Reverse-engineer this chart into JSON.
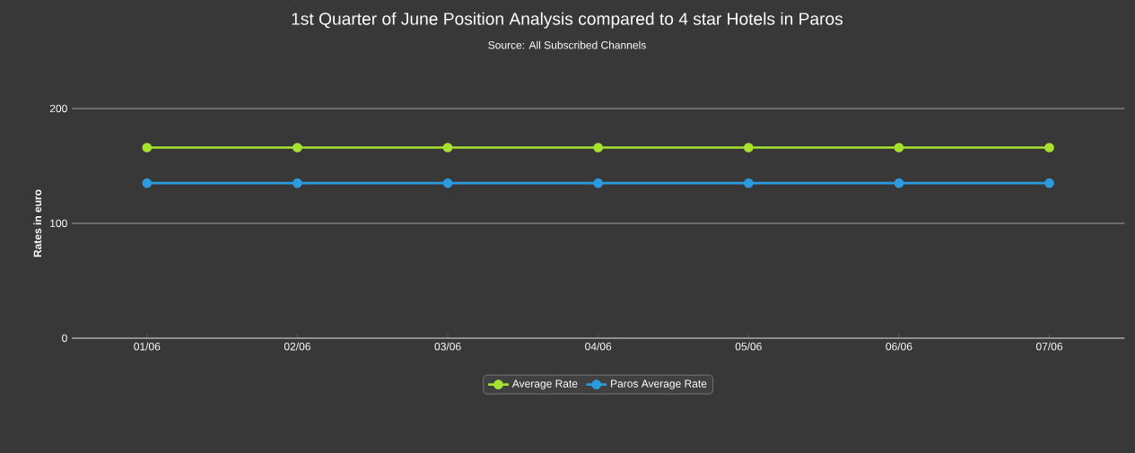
{
  "chart_data": {
    "type": "line",
    "title": "1st Quarter of June Position Analysis compared to 4 star Hotels in Paros",
    "subtitle": "Source: All Subscribed Channels",
    "ylabel": "Rates in euro",
    "categories": [
      "01/06",
      "02/06",
      "03/06",
      "04/06",
      "05/06",
      "06/06",
      "07/06"
    ],
    "series": [
      {
        "name": "Average Rate",
        "color": "#a6e22e",
        "values": [
          166,
          166,
          166,
          166,
          166,
          166,
          166
        ]
      },
      {
        "name": "Paros Average Rate",
        "color": "#2b9be0",
        "values": [
          135,
          135,
          135,
          135,
          135,
          135,
          135
        ]
      }
    ],
    "ylim": [
      0,
      200
    ],
    "yticks": [
      0,
      100,
      200
    ],
    "grid": "y",
    "legend": "bottom",
    "marker": "circle",
    "line_style": "solid"
  }
}
